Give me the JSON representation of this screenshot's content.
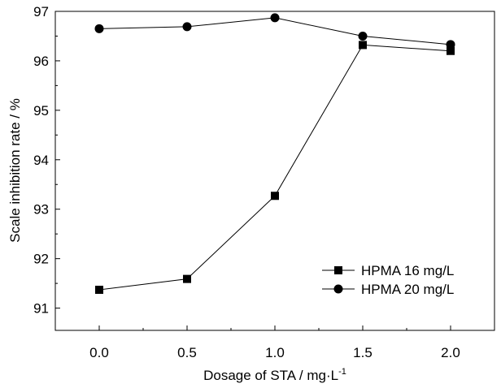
{
  "chart_data": {
    "type": "line",
    "x": [
      0.0,
      0.5,
      1.0,
      1.5,
      2.0
    ],
    "x_tick_labels": [
      "0.0",
      "0.5",
      "1.0",
      "1.5",
      "2.0"
    ],
    "y_tick_labels": [
      "91",
      "92",
      "93",
      "94",
      "95",
      "96",
      "97"
    ],
    "xlim": [
      -0.25,
      2.25
    ],
    "ylim": [
      90.55,
      97.0
    ],
    "xlabel": "Dosage of STA / mg·L",
    "xlabel_superscript": "-1",
    "ylabel": "Scale inhibition rate / %",
    "grid": false,
    "legend_position": "bottom-right",
    "series": [
      {
        "name": "HPMA 16 mg/L",
        "marker": "square",
        "color": "#000000",
        "values": [
          91.37,
          91.59,
          93.27,
          96.32,
          96.2
        ]
      },
      {
        "name": "HPMA 20 mg/L",
        "marker": "circle",
        "color": "#000000",
        "values": [
          96.65,
          96.69,
          96.87,
          96.5,
          96.33
        ]
      }
    ]
  }
}
